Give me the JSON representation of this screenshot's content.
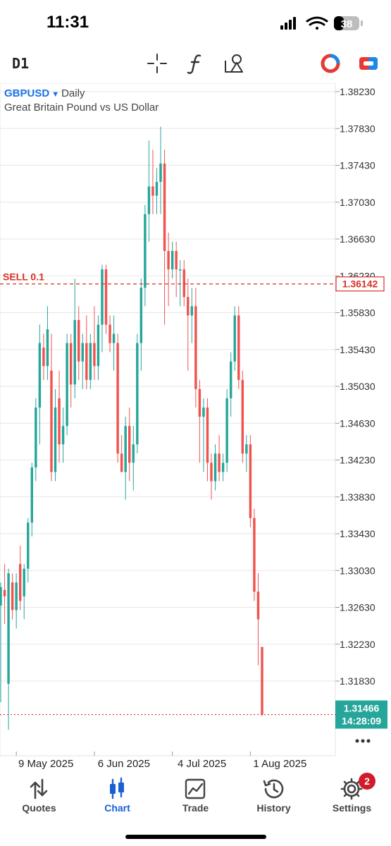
{
  "status_bar": {
    "time": "11:31",
    "battery": "38"
  },
  "toolbar": {
    "timeframe": "D1"
  },
  "chart": {
    "symbol": "GBPUSD",
    "period": "Daily",
    "description": "Great Britain Pound vs US Dollar",
    "order_label": "SELL 0.1",
    "order_price": "1.36142",
    "current_price": "1.31466",
    "countdown": "14:28:09",
    "price_ticks": [
      "1.38230",
      "1.37830",
      "1.37430",
      "1.37030",
      "1.36630",
      "1.36230",
      "1.35830",
      "1.35430",
      "1.35030",
      "1.34630",
      "1.34230",
      "1.33830",
      "1.33430",
      "1.33030",
      "1.32630",
      "1.32230",
      "1.31830"
    ],
    "date_ticks": [
      "9 May 2025",
      "6 Jun 2025",
      "4 Jul 2025",
      "1 Aug 2025"
    ],
    "colors": {
      "up": "#26a69a",
      "down": "#ef5350",
      "order": "#d93025",
      "grid": "#e6e6e6"
    }
  },
  "chart_data": {
    "type": "candlestick",
    "symbol": "GBPUSD",
    "timeframe": "Daily",
    "ylim": [
      1.313,
      1.385
    ],
    "y_ticks": [
      1.3823,
      1.3783,
      1.3743,
      1.3703,
      1.3663,
      1.3623,
      1.3583,
      1.3543,
      1.3503,
      1.3463,
      1.3423,
      1.3383,
      1.3343,
      1.3303,
      1.3263,
      1.3223,
      1.3183
    ],
    "x_ticks": [
      "9 May 2025",
      "6 Jun 2025",
      "4 Jul 2025",
      "1 Aug 2025"
    ],
    "candles": [
      {
        "o": 1.3265,
        "h": 1.329,
        "l": 1.316,
        "c": 1.3285
      },
      {
        "o": 1.3282,
        "h": 1.331,
        "l": 1.3245,
        "c": 1.3275
      },
      {
        "o": 1.318,
        "h": 1.3305,
        "l": 1.313,
        "c": 1.33
      },
      {
        "o": 1.329,
        "h": 1.33,
        "l": 1.325,
        "c": 1.326
      },
      {
        "o": 1.326,
        "h": 1.33,
        "l": 1.324,
        "c": 1.329
      },
      {
        "o": 1.331,
        "h": 1.333,
        "l": 1.326,
        "c": 1.327
      },
      {
        "o": 1.3275,
        "h": 1.331,
        "l": 1.325,
        "c": 1.3305
      },
      {
        "o": 1.3305,
        "h": 1.336,
        "l": 1.329,
        "c": 1.3355
      },
      {
        "o": 1.3355,
        "h": 1.342,
        "l": 1.334,
        "c": 1.3415
      },
      {
        "o": 1.3415,
        "h": 1.349,
        "l": 1.34,
        "c": 1.348
      },
      {
        "o": 1.348,
        "h": 1.357,
        "l": 1.344,
        "c": 1.355
      },
      {
        "o": 1.3545,
        "h": 1.356,
        "l": 1.351,
        "c": 1.3525
      },
      {
        "o": 1.3525,
        "h": 1.359,
        "l": 1.351,
        "c": 1.3565
      },
      {
        "o": 1.352,
        "h": 1.356,
        "l": 1.34,
        "c": 1.341
      },
      {
        "o": 1.341,
        "h": 1.35,
        "l": 1.34,
        "c": 1.348
      },
      {
        "o": 1.349,
        "h": 1.352,
        "l": 1.342,
        "c": 1.344
      },
      {
        "o": 1.344,
        "h": 1.348,
        "l": 1.342,
        "c": 1.346
      },
      {
        "o": 1.346,
        "h": 1.356,
        "l": 1.345,
        "c": 1.355
      },
      {
        "o": 1.355,
        "h": 1.356,
        "l": 1.348,
        "c": 1.3505
      },
      {
        "o": 1.3505,
        "h": 1.362,
        "l": 1.349,
        "c": 1.3575
      },
      {
        "o": 1.3575,
        "h": 1.359,
        "l": 1.351,
        "c": 1.353
      },
      {
        "o": 1.353,
        "h": 1.356,
        "l": 1.35,
        "c": 1.355
      },
      {
        "o": 1.355,
        "h": 1.358,
        "l": 1.35,
        "c": 1.351
      },
      {
        "o": 1.351,
        "h": 1.356,
        "l": 1.35,
        "c": 1.355
      },
      {
        "o": 1.355,
        "h": 1.359,
        "l": 1.351,
        "c": 1.3525
      },
      {
        "o": 1.3525,
        "h": 1.358,
        "l": 1.351,
        "c": 1.357
      },
      {
        "o": 1.357,
        "h": 1.3635,
        "l": 1.354,
        "c": 1.363
      },
      {
        "o": 1.363,
        "h": 1.3635,
        "l": 1.356,
        "c": 1.357
      },
      {
        "o": 1.357,
        "h": 1.358,
        "l": 1.354,
        "c": 1.355
      },
      {
        "o": 1.355,
        "h": 1.358,
        "l": 1.352,
        "c": 1.356
      },
      {
        "o": 1.355,
        "h": 1.356,
        "l": 1.342,
        "c": 1.343
      },
      {
        "o": 1.343,
        "h": 1.345,
        "l": 1.341,
        "c": 1.341
      },
      {
        "o": 1.341,
        "h": 1.347,
        "l": 1.338,
        "c": 1.346
      },
      {
        "o": 1.346,
        "h": 1.348,
        "l": 1.34,
        "c": 1.342
      },
      {
        "o": 1.342,
        "h": 1.346,
        "l": 1.339,
        "c": 1.344
      },
      {
        "o": 1.344,
        "h": 1.356,
        "l": 1.343,
        "c": 1.355
      },
      {
        "o": 1.355,
        "h": 1.362,
        "l": 1.352,
        "c": 1.361
      },
      {
        "o": 1.361,
        "h": 1.37,
        "l": 1.359,
        "c": 1.369
      },
      {
        "o": 1.369,
        "h": 1.377,
        "l": 1.366,
        "c": 1.372
      },
      {
        "o": 1.372,
        "h": 1.376,
        "l": 1.369,
        "c": 1.371
      },
      {
        "o": 1.371,
        "h": 1.374,
        "l": 1.369,
        "c": 1.3725
      },
      {
        "o": 1.3725,
        "h": 1.3785,
        "l": 1.369,
        "c": 1.3745
      },
      {
        "o": 1.3745,
        "h": 1.376,
        "l": 1.357,
        "c": 1.365
      },
      {
        "o": 1.365,
        "h": 1.367,
        "l": 1.359,
        "c": 1.363
      },
      {
        "o": 1.363,
        "h": 1.366,
        "l": 1.362,
        "c": 1.365
      },
      {
        "o": 1.365,
        "h": 1.366,
        "l": 1.36,
        "c": 1.363
      },
      {
        "o": 1.363,
        "h": 1.364,
        "l": 1.359,
        "c": 1.363
      },
      {
        "o": 1.363,
        "h": 1.364,
        "l": 1.359,
        "c": 1.36
      },
      {
        "o": 1.36,
        "h": 1.362,
        "l": 1.352,
        "c": 1.358
      },
      {
        "o": 1.358,
        "h": 1.361,
        "l": 1.355,
        "c": 1.359
      },
      {
        "o": 1.359,
        "h": 1.361,
        "l": 1.348,
        "c": 1.35
      },
      {
        "o": 1.35,
        "h": 1.351,
        "l": 1.342,
        "c": 1.347
      },
      {
        "o": 1.347,
        "h": 1.349,
        "l": 1.341,
        "c": 1.348
      },
      {
        "o": 1.348,
        "h": 1.349,
        "l": 1.34,
        "c": 1.342
      },
      {
        "o": 1.342,
        "h": 1.343,
        "l": 1.338,
        "c": 1.34
      },
      {
        "o": 1.34,
        "h": 1.344,
        "l": 1.339,
        "c": 1.343
      },
      {
        "o": 1.343,
        "h": 1.345,
        "l": 1.34,
        "c": 1.341
      },
      {
        "o": 1.341,
        "h": 1.343,
        "l": 1.34,
        "c": 1.342
      },
      {
        "o": 1.342,
        "h": 1.35,
        "l": 1.341,
        "c": 1.349
      },
      {
        "o": 1.349,
        "h": 1.354,
        "l": 1.347,
        "c": 1.353
      },
      {
        "o": 1.353,
        "h": 1.359,
        "l": 1.352,
        "c": 1.358
      },
      {
        "o": 1.358,
        "h": 1.359,
        "l": 1.35,
        "c": 1.351
      },
      {
        "o": 1.351,
        "h": 1.352,
        "l": 1.342,
        "c": 1.343
      },
      {
        "o": 1.343,
        "h": 1.345,
        "l": 1.341,
        "c": 1.344
      },
      {
        "o": 1.344,
        "h": 1.345,
        "l": 1.335,
        "c": 1.336
      },
      {
        "o": 1.336,
        "h": 1.337,
        "l": 1.327,
        "c": 1.328
      },
      {
        "o": 1.328,
        "h": 1.33,
        "l": 1.32,
        "c": 1.325
      },
      {
        "o": 1.322,
        "h": 1.322,
        "l": 1.3145,
        "c": 1.31466
      }
    ]
  },
  "tabs": [
    {
      "label": "Quotes",
      "icon": "quotes-arrows-icon"
    },
    {
      "label": "Chart",
      "icon": "candlestick-chart-icon"
    },
    {
      "label": "Trade",
      "icon": "trade-chart-icon"
    },
    {
      "label": "History",
      "icon": "history-clock-icon"
    },
    {
      "label": "Settings",
      "icon": "settings-gear-icon",
      "badge": "2"
    }
  ]
}
